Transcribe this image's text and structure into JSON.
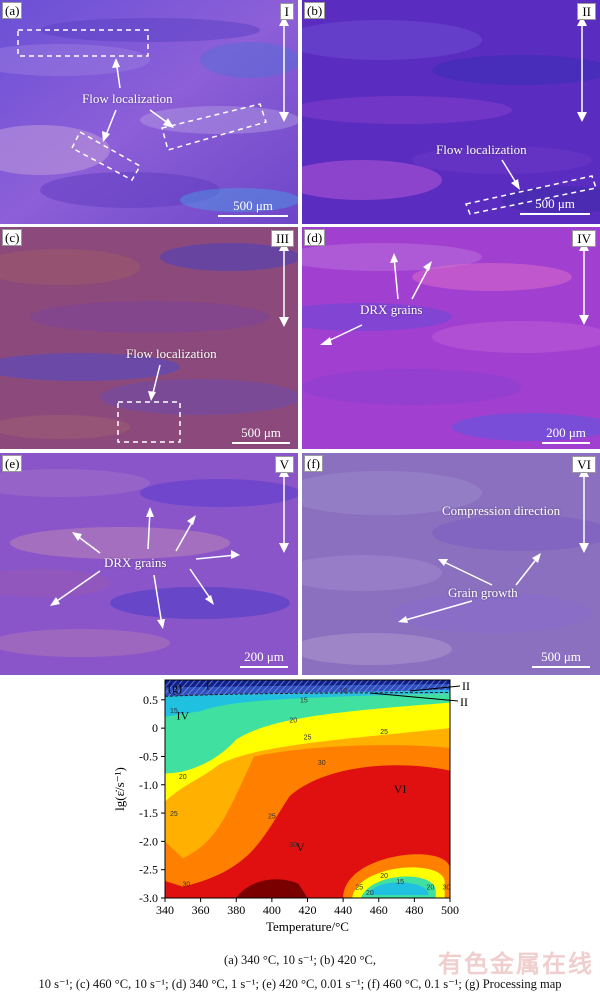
{
  "panels": [
    {
      "letter": "(a)",
      "roman": "I",
      "scale": "500 μm",
      "annotation": "Flow localization"
    },
    {
      "letter": "(b)",
      "roman": "II",
      "scale": "500 μm",
      "annotation": "Flow localization"
    },
    {
      "letter": "(c)",
      "roman": "III",
      "scale": "500 μm",
      "annotation": "Flow localization"
    },
    {
      "letter": "(d)",
      "roman": "IV",
      "scale": "200 μm",
      "annotation": "DRX grains"
    },
    {
      "letter": "(e)",
      "roman": "V",
      "scale": "200 μm",
      "annotation": "DRX grains"
    },
    {
      "letter": "(f)",
      "roman": "VI",
      "scale": "500 μm",
      "annotation": "Grain growth",
      "annotation2": "Compression direction"
    }
  ],
  "colors": {
    "micro_base_a": "#7d4fd6",
    "micro_base_b": "#5e2fc0",
    "micro_base_c": "#8a4a8a",
    "micro_base_d": "#a23fd4",
    "micro_base_e": "#8a55c8",
    "micro_base_f": "#8b70c0"
  },
  "chart_data": {
    "type": "heatmap",
    "panel_label": "(g)",
    "xlabel": "Temperature/°C",
    "ylabel": "lg(ε̇/s⁻¹)",
    "x_ticks": [
      "340",
      "360",
      "380",
      "400",
      "420",
      "440",
      "460",
      "480",
      "500"
    ],
    "y_ticks": [
      "0.5",
      "0",
      "-0.5",
      "-1.0",
      "-1.5",
      "-2.0",
      "-2.5",
      "-3.0"
    ],
    "xlim": [
      340,
      500
    ],
    "ylim": [
      -3.0,
      0.85
    ],
    "contour_levels": [
      "10",
      "15",
      "20",
      "25",
      "30",
      "35"
    ],
    "regions": [
      "I",
      "II",
      "III",
      "IV",
      "V",
      "VI"
    ],
    "region_positions": [
      {
        "label": "I",
        "x": 364,
        "y": 0.68
      },
      {
        "label": "IV",
        "x": 350,
        "y": 0.15
      },
      {
        "label": "V",
        "x": 416,
        "y": -2.17
      },
      {
        "label": "VI",
        "x": 472,
        "y": -1.15
      }
    ],
    "callouts": [
      {
        "label": "III"
      },
      {
        "label": "II"
      }
    ]
  },
  "caption": {
    "line1": "(a) 340 °C, 10 s⁻¹; (b) 420 °C,",
    "line2": "10 s⁻¹; (c) 460 °C, 10 s⁻¹; (d) 340 °C, 1 s⁻¹; (e) 420 °C, 0.01 s⁻¹; (f) 460 °C, 0.1 s⁻¹; (g) Processing map"
  },
  "watermark": "有色金属在线"
}
